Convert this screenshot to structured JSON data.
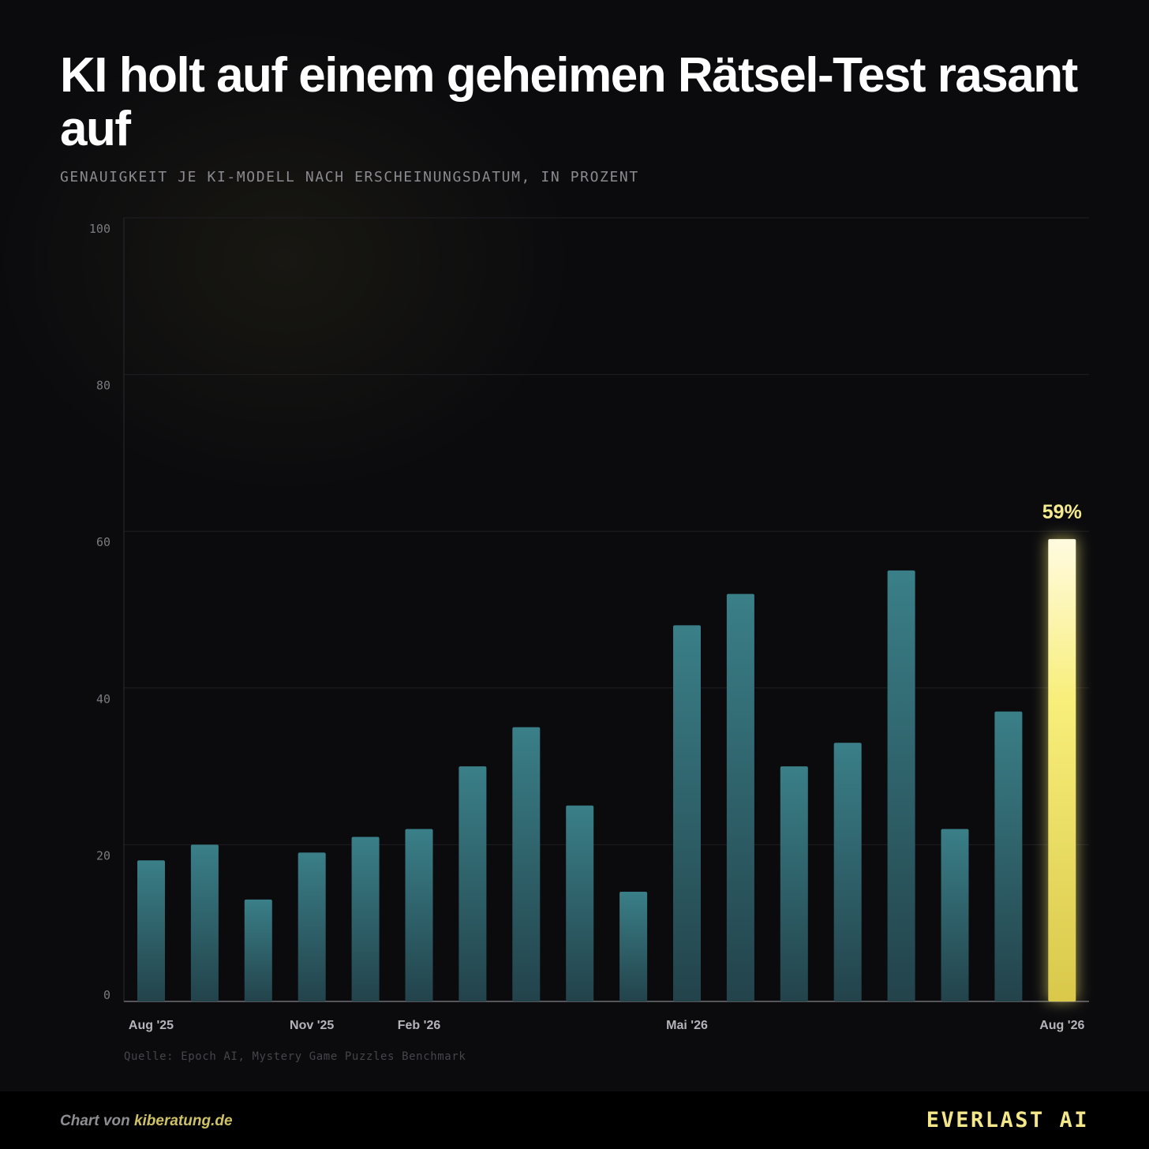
{
  "header": {
    "title": "KI holt auf einem geheimen Rätsel-Test rasant auf",
    "subtitle": "GENAUIGKEIT JE KI-MODELL NACH ERSCHEINUNGSDATUM, IN PROZENT"
  },
  "source": "Quelle: Epoch AI, Mystery Game Puzzles Benchmark",
  "footer": {
    "credit_prefix": "Chart von ",
    "credit_site": "kiberatung.de",
    "brand": "EVERLAST AI"
  },
  "colors": {
    "bar": "#3a7f88",
    "highlight": "#f6ea74",
    "background": "#0b0b0e"
  },
  "chart_data": {
    "type": "bar",
    "title": "KI holt auf einem geheimen Rätsel-Test rasant auf",
    "subtitle": "GENAUIGKEIT JE KI-MODELL NACH ERSCHEINUNGSDATUM, IN PROZENT",
    "xlabel": "",
    "ylabel": "",
    "ylim": [
      0,
      100
    ],
    "yticks": [
      0,
      20,
      40,
      60,
      80,
      100
    ],
    "grid": true,
    "values": [
      18,
      20,
      13,
      19,
      21,
      22,
      30,
      35,
      25,
      14,
      48,
      52,
      30,
      33,
      55,
      22,
      37,
      59
    ],
    "x_tick_labels": [
      {
        "index": 0,
        "label": "Aug '25"
      },
      {
        "index": 3,
        "label": "Nov '25"
      },
      {
        "index": 5,
        "label": "Feb '26"
      },
      {
        "index": 10,
        "label": "Mai '26"
      },
      {
        "index": 17,
        "label": "Aug '26"
      }
    ],
    "highlight_index": 17,
    "highlight_label": "59%"
  }
}
